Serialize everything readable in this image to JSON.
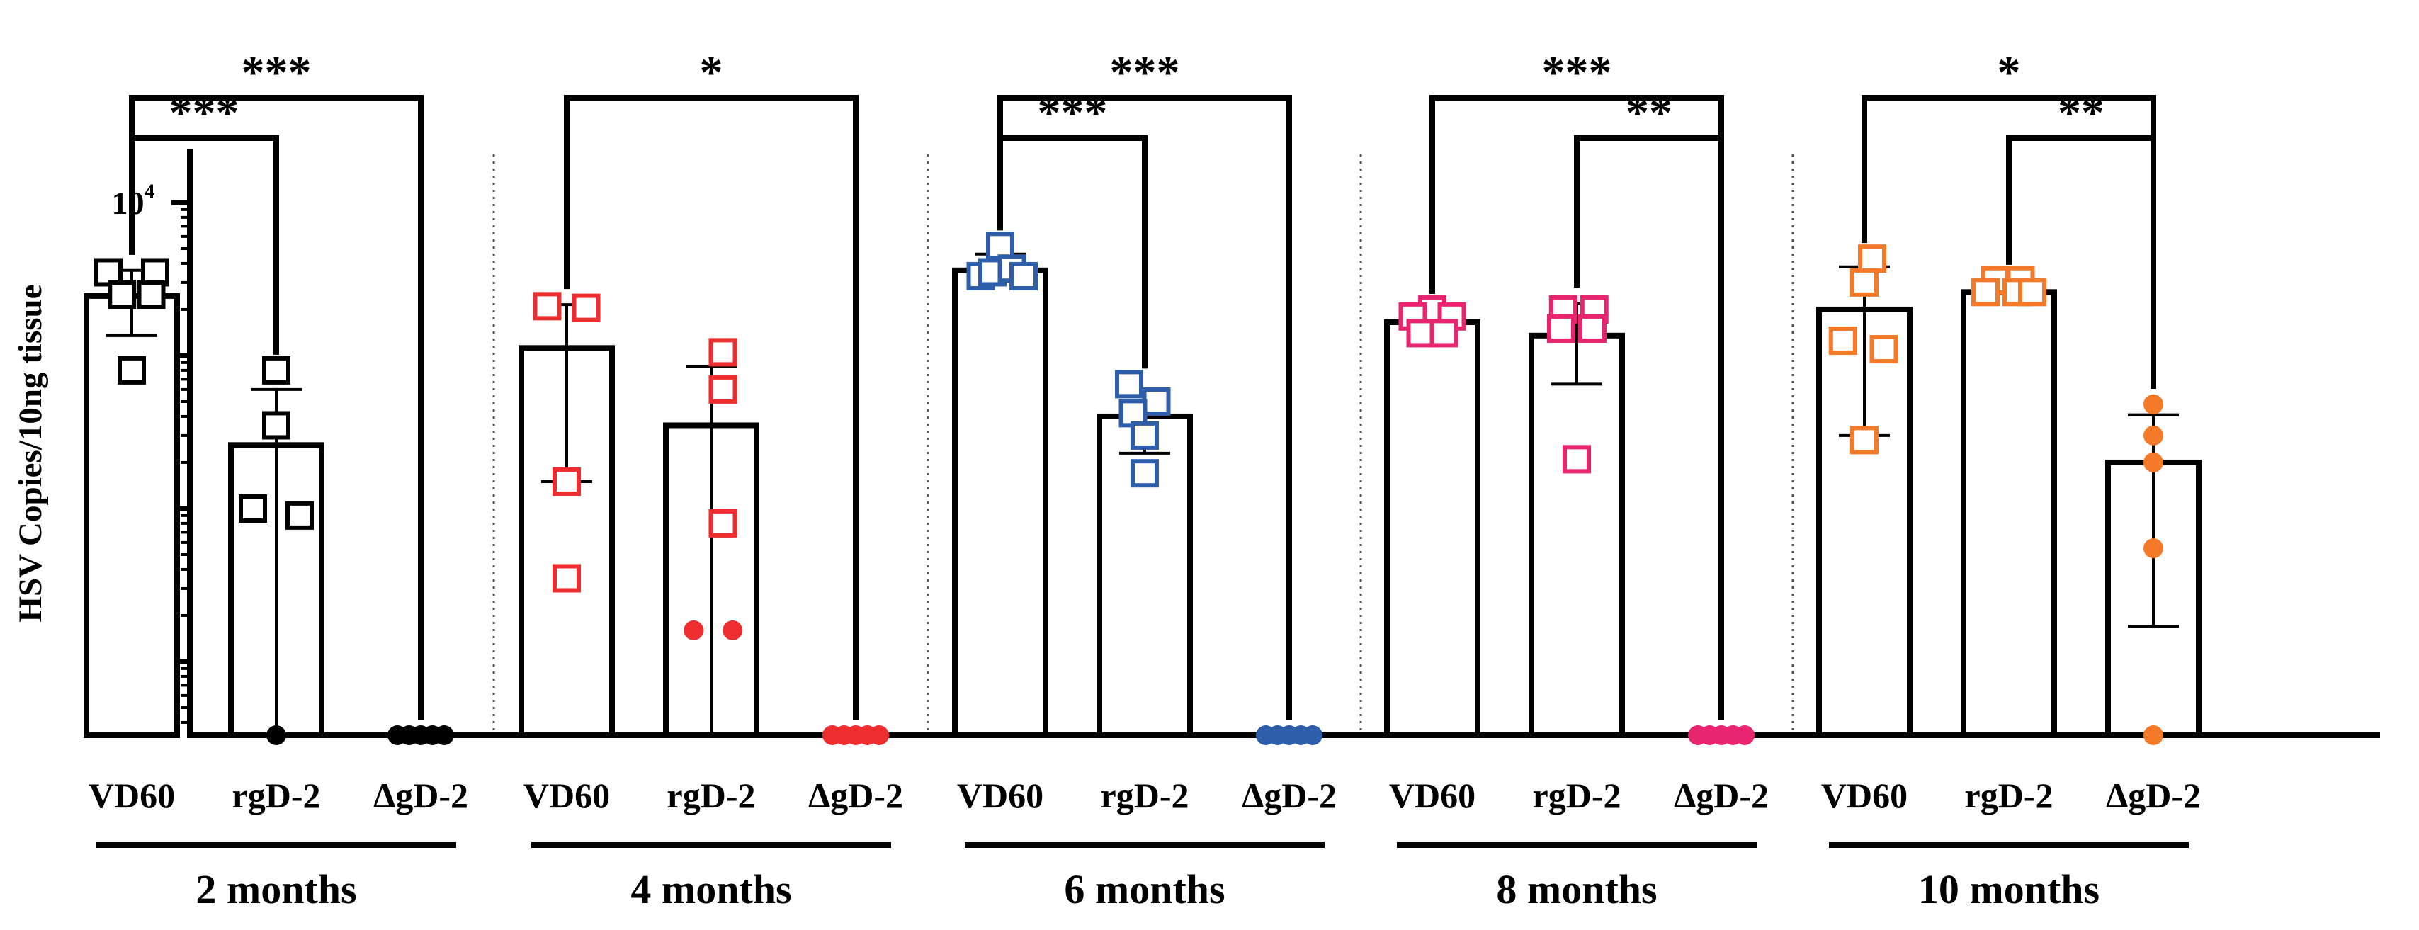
{
  "chart_data": {
    "type": "bar",
    "yaxis": {
      "title": "HSV Copies/10ng tissue",
      "scale": "log",
      "ticks": [
        {
          "value": 10,
          "base": "10",
          "exp": "1"
        },
        {
          "value": 100,
          "base": "10",
          "exp": "2"
        },
        {
          "value": 1000,
          "base": "10",
          "exp": "3"
        },
        {
          "value": 10000,
          "base": "10",
          "exp": "4"
        }
      ],
      "range": [
        3.3,
        25000
      ]
    },
    "categories": [
      "VD60",
      "rgD-2",
      "ΔgD-2"
    ],
    "groups": [
      {
        "label": "2 months",
        "color": "#000000",
        "bars": [
          {
            "category": "VD60",
            "mean": 2450,
            "err_low": 1350,
            "err_high": 3600,
            "points": [
              {
                "v": 3500,
                "shape": "square",
                "dx": -0.6
              },
              {
                "v": 3500,
                "shape": "square",
                "dx": 0.6
              },
              {
                "v": 2500,
                "shape": "square",
                "dx": -0.25
              },
              {
                "v": 2500,
                "shape": "square",
                "dx": 0.5
              },
              {
                "v": 800,
                "shape": "square",
                "dx": 0
              }
            ]
          },
          {
            "category": "rgD-2",
            "mean": 260,
            "err_low": 0,
            "err_high": 600,
            "points": [
              {
                "v": 800,
                "shape": "square",
                "dx": 0
              },
              {
                "v": 350,
                "shape": "square",
                "dx": 0
              },
              {
                "v": 100,
                "shape": "square",
                "dx": -0.6
              },
              {
                "v": 90,
                "shape": "square",
                "dx": 0.6
              },
              {
                "v": 3.3,
                "shape": "circle",
                "dx": 0
              }
            ]
          },
          {
            "category": "ΔgD-2",
            "mean": 0,
            "err_low": 0,
            "err_high": 0,
            "points": [
              {
                "v": 3.3,
                "shape": "circle",
                "dx": -0.6
              },
              {
                "v": 3.3,
                "shape": "circle",
                "dx": -0.3
              },
              {
                "v": 3.3,
                "shape": "circle",
                "dx": 0
              },
              {
                "v": 3.3,
                "shape": "circle",
                "dx": 0.3
              },
              {
                "v": 3.3,
                "shape": "circle",
                "dx": 0.6
              }
            ]
          }
        ],
        "significance": [
          {
            "from": "VD60",
            "to": "ΔgD-2",
            "label": "***",
            "level": 0
          },
          {
            "from": "VD60",
            "to": "rgD-2",
            "label": "***",
            "level": 1
          }
        ]
      },
      {
        "label": "4 months",
        "color": "#ee2d2f",
        "bars": [
          {
            "category": "VD60",
            "mean": 1120,
            "err_low": 150,
            "err_high": 2150,
            "points": [
              {
                "v": 2100,
                "shape": "square",
                "dx": -0.5
              },
              {
                "v": 2050,
                "shape": "square",
                "dx": 0.5
              },
              {
                "v": 150,
                "shape": "square",
                "dx": 0
              },
              {
                "v": 35,
                "shape": "square",
                "dx": 0
              }
            ]
          },
          {
            "category": "rgD-2",
            "mean": 350,
            "err_low": 0,
            "err_high": 850,
            "points": [
              {
                "v": 1050,
                "shape": "square",
                "dx": 0.3
              },
              {
                "v": 600,
                "shape": "square",
                "dx": 0.3
              },
              {
                "v": 80,
                "shape": "square",
                "dx": 0.3
              },
              {
                "v": 16,
                "shape": "circle",
                "dx": -0.45
              },
              {
                "v": 16,
                "shape": "circle",
                "dx": 0.55
              }
            ]
          },
          {
            "category": "ΔgD-2",
            "mean": 0,
            "err_low": 0,
            "err_high": 0,
            "points": [
              {
                "v": 3.3,
                "shape": "circle",
                "dx": -0.6
              },
              {
                "v": 3.3,
                "shape": "circle",
                "dx": -0.3
              },
              {
                "v": 3.3,
                "shape": "circle",
                "dx": 0
              },
              {
                "v": 3.3,
                "shape": "circle",
                "dx": 0.3
              },
              {
                "v": 3.3,
                "shape": "circle",
                "dx": 0.6
              }
            ]
          }
        ],
        "significance": [
          {
            "from": "VD60",
            "to": "ΔgD-2",
            "label": "*",
            "level": 0
          }
        ]
      },
      {
        "label": "6 months",
        "color": "#2e5eaa",
        "bars": [
          {
            "category": "VD60",
            "mean": 3600,
            "err_low": 3300,
            "err_high": 4600,
            "points": [
              {
                "v": 5200,
                "shape": "square",
                "dx": 0
              },
              {
                "v": 3300,
                "shape": "square",
                "dx": -0.5
              },
              {
                "v": 3500,
                "shape": "square",
                "dx": -0.2
              },
              {
                "v": 3700,
                "shape": "square",
                "dx": 0.3
              },
              {
                "v": 3300,
                "shape": "square",
                "dx": 0.6
              }
            ]
          },
          {
            "category": "rgD-2",
            "mean": 400,
            "err_low": 230,
            "err_high": 600,
            "points": [
              {
                "v": 650,
                "shape": "square",
                "dx": -0.4
              },
              {
                "v": 500,
                "shape": "square",
                "dx": 0.3
              },
              {
                "v": 420,
                "shape": "square",
                "dx": -0.3
              },
              {
                "v": 300,
                "shape": "square",
                "dx": 0
              },
              {
                "v": 170,
                "shape": "square",
                "dx": 0
              }
            ]
          },
          {
            "category": "ΔgD-2",
            "mean": 0,
            "err_low": 0,
            "err_high": 0,
            "points": [
              {
                "v": 3.3,
                "shape": "circle",
                "dx": -0.6
              },
              {
                "v": 3.3,
                "shape": "circle",
                "dx": -0.3
              },
              {
                "v": 3.3,
                "shape": "circle",
                "dx": 0
              },
              {
                "v": 3.3,
                "shape": "circle",
                "dx": 0.3
              },
              {
                "v": 3.3,
                "shape": "circle",
                "dx": 0.6
              }
            ]
          }
        ],
        "significance": [
          {
            "from": "VD60",
            "to": "ΔgD-2",
            "label": "***",
            "level": 0
          },
          {
            "from": "VD60",
            "to": "rgD-2",
            "label": "***",
            "level": 1
          }
        ]
      },
      {
        "label": "8 months",
        "color": "#e8256f",
        "bars": [
          {
            "category": "VD60",
            "mean": 1650,
            "err_low": 1550,
            "err_high": 1800,
            "points": [
              {
                "v": 2000,
                "shape": "square",
                "dx": 0
              },
              {
                "v": 1800,
                "shape": "square",
                "dx": -0.5
              },
              {
                "v": 1800,
                "shape": "square",
                "dx": 0.5
              },
              {
                "v": 1400,
                "shape": "square",
                "dx": -0.3
              },
              {
                "v": 1400,
                "shape": "square",
                "dx": 0.3
              }
            ]
          },
          {
            "category": "rgD-2",
            "mean": 1350,
            "err_low": 650,
            "err_high": 2200,
            "points": [
              {
                "v": 2000,
                "shape": "square",
                "dx": -0.35
              },
              {
                "v": 2000,
                "shape": "square",
                "dx": 0.45
              },
              {
                "v": 1500,
                "shape": "square",
                "dx": -0.4
              },
              {
                "v": 1500,
                "shape": "square",
                "dx": 0.4
              },
              {
                "v": 210,
                "shape": "square",
                "dx": 0
              }
            ]
          },
          {
            "category": "ΔgD-2",
            "mean": 0,
            "err_low": 0,
            "err_high": 0,
            "points": [
              {
                "v": 3.3,
                "shape": "circle",
                "dx": -0.6
              },
              {
                "v": 3.3,
                "shape": "circle",
                "dx": -0.3
              },
              {
                "v": 3.3,
                "shape": "circle",
                "dx": 0
              },
              {
                "v": 3.3,
                "shape": "circle",
                "dx": 0.3
              },
              {
                "v": 3.3,
                "shape": "circle",
                "dx": 0.6
              }
            ]
          }
        ],
        "significance": [
          {
            "from": "VD60",
            "to": "ΔgD-2",
            "label": "***",
            "level": 0
          },
          {
            "from": "rgD-2",
            "to": "ΔgD-2",
            "label": "**",
            "level": 1
          }
        ]
      },
      {
        "label": "10 months",
        "color": "#f47a2a",
        "bars": [
          {
            "category": "VD60",
            "mean": 2000,
            "err_low": 300,
            "err_high": 3800,
            "points": [
              {
                "v": 4300,
                "shape": "square",
                "dx": 0.2
              },
              {
                "v": 3000,
                "shape": "square",
                "dx": 0
              },
              {
                "v": 1250,
                "shape": "square",
                "dx": -0.55
              },
              {
                "v": 1100,
                "shape": "square",
                "dx": 0.5
              },
              {
                "v": 280,
                "shape": "square",
                "dx": 0
              }
            ]
          },
          {
            "category": "rgD-2",
            "mean": 2600,
            "err_low": 2600,
            "err_high": 3100,
            "points": [
              {
                "v": 3100,
                "shape": "square",
                "dx": -0.35
              },
              {
                "v": 3100,
                "shape": "square",
                "dx": 0.3
              },
              {
                "v": 2600,
                "shape": "square",
                "dx": -0.6
              },
              {
                "v": 2600,
                "shape": "square",
                "dx": 0.2
              },
              {
                "v": 2600,
                "shape": "square",
                "dx": 0.6
              }
            ]
          },
          {
            "category": "ΔgD-2",
            "mean": 200,
            "err_low": 17,
            "err_high": 410,
            "points": [
              {
                "v": 480,
                "shape": "circle",
                "dx": 0
              },
              {
                "v": 300,
                "shape": "circle",
                "dx": 0
              },
              {
                "v": 200,
                "shape": "circle",
                "dx": 0
              },
              {
                "v": 55,
                "shape": "circle",
                "dx": 0
              },
              {
                "v": 3.3,
                "shape": "circle",
                "dx": 0
              }
            ]
          }
        ],
        "significance": [
          {
            "from": "VD60",
            "to": "ΔgD-2",
            "label": "*",
            "level": 0
          },
          {
            "from": "rgD-2",
            "to": "ΔgD-2",
            "label": "**",
            "level": 1
          }
        ]
      }
    ]
  }
}
